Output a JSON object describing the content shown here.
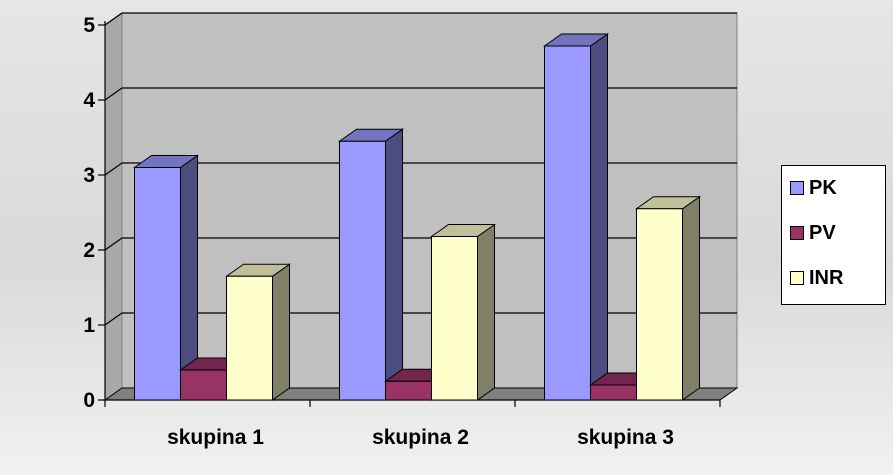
{
  "chart_data": {
    "type": "bar",
    "categories": [
      "skupina 1",
      "skupina 2",
      "skupina 3"
    ],
    "series": [
      {
        "name": "PK",
        "values": [
          3.1,
          3.45,
          4.72
        ],
        "color": "#9999FF",
        "side_color": "#4D4D80",
        "top_color": "#7373BF"
      },
      {
        "name": "PV",
        "values": [
          0.4,
          0.25,
          0.2
        ],
        "color": "#993366",
        "side_color": "#4D1A33",
        "top_color": "#73264D"
      },
      {
        "name": "INR",
        "values": [
          1.65,
          2.18,
          2.55
        ],
        "color": "#FFFFCC",
        "side_color": "#808066",
        "top_color": "#BFBF99"
      }
    ],
    "yticks": [
      "0",
      "1",
      "2",
      "3",
      "4",
      "5"
    ],
    "ylim": [
      0,
      5
    ],
    "grid": true,
    "legend": "right",
    "wall_color": "#C0C0C0",
    "floor_color": "#808080"
  }
}
